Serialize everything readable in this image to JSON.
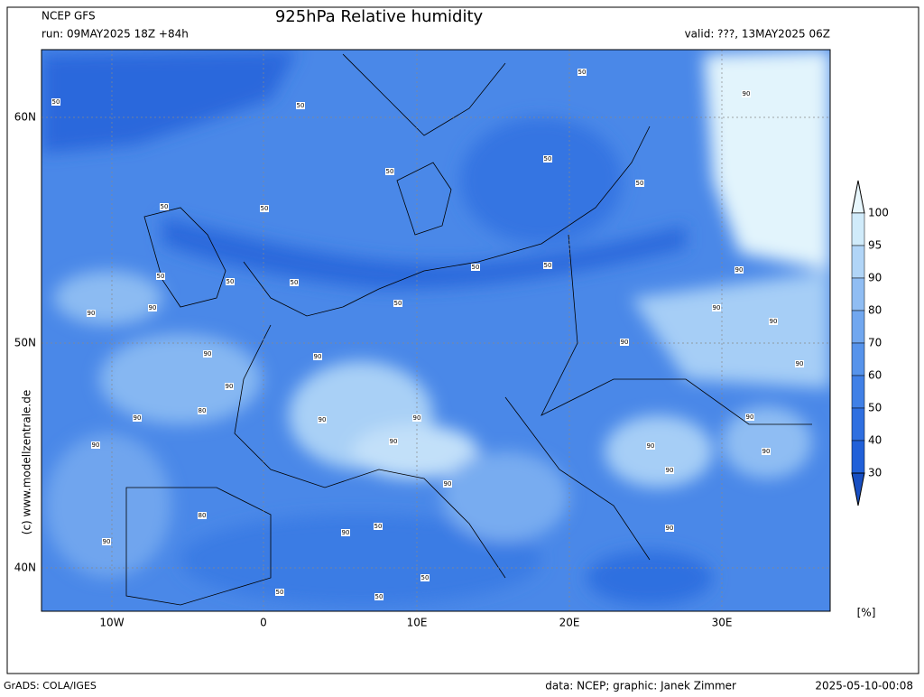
{
  "header": {
    "model": "NCEP GFS",
    "run": "run: 09MAY2025 18Z +84h",
    "title": "925hPa Relative humidity",
    "valid": "valid: ???, 13MAY2025 06Z"
  },
  "map": {
    "lat_labels": [
      "60N",
      "50N",
      "40N"
    ],
    "lon_labels": [
      "10W",
      "0",
      "10E",
      "20E",
      "30E"
    ],
    "contour_labels": [
      "50",
      "50",
      "50",
      "90",
      "50",
      "50",
      "50",
      "50",
      "50",
      "50",
      "50",
      "50",
      "50",
      "50",
      "50",
      "90",
      "90",
      "90",
      "90",
      "90",
      "90",
      "90",
      "90",
      "90",
      "90",
      "80",
      "90",
      "90",
      "90",
      "90",
      "90",
      "90",
      "90",
      "90",
      "90",
      "90",
      "80",
      "50",
      "90",
      "90",
      "90",
      "50",
      "50",
      "50"
    ]
  },
  "colorbar": {
    "levels": [
      100,
      95,
      90,
      80,
      70,
      60,
      50,
      40,
      30
    ],
    "colors": [
      "#e8f7fd",
      "#d0ebfa",
      "#b1d5f7",
      "#90bdf3",
      "#71a7ef",
      "#5693eb",
      "#4080e6",
      "#2f6fe0",
      "#2160d8",
      "#184fc2"
    ],
    "unit": "[%]"
  },
  "footer": {
    "credit": "(c) www.modellzentrale.de",
    "software": "GrADS: COLA/IGES",
    "source": "data: NCEP; graphic: Janek Zimmer",
    "timestamp": "2025-05-10-00:08"
  }
}
